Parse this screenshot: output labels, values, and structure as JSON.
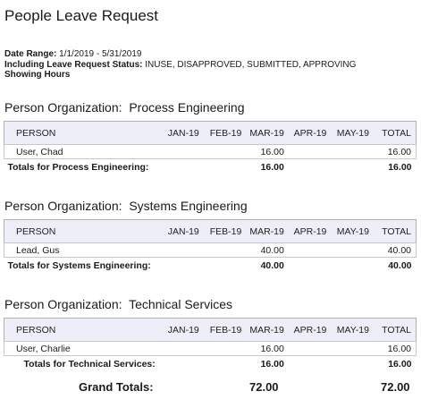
{
  "title": "People Leave Request",
  "meta": {
    "date_range_label": "Date Range:",
    "date_range_value": "1/1/2019 - 5/31/2019",
    "status_label": "Including Leave Request Status:",
    "status_value": "INUSE, DISAPPROVED, SUBMITTED, APPROVING",
    "showing": "Showing Hours"
  },
  "columns": [
    "PERSON",
    "JAN-19",
    "FEB-19",
    "MAR-19",
    "APR-19",
    "MAY-19",
    "TOTAL"
  ],
  "groups": [
    {
      "heading_label": "Person Organization:",
      "heading_value": "Process Engineering",
      "rows": [
        [
          "User, Chad",
          "",
          "",
          "16.00",
          "",
          "",
          "16.00"
        ]
      ],
      "totals": [
        "Totals for Process Engineering:",
        "",
        "",
        "16.00",
        "",
        "",
        "16.00"
      ]
    },
    {
      "heading_label": "Person Organization:",
      "heading_value": "Systems Engineering",
      "rows": [
        [
          "Lead, Gus",
          "",
          "",
          "40.00",
          "",
          "",
          "40.00"
        ]
      ],
      "totals": [
        "Totals for Systems Engineering:",
        "",
        "",
        "40.00",
        "",
        "",
        "40.00"
      ]
    },
    {
      "heading_label": "Person Organization:",
      "heading_value": "Technical Services",
      "rows": [
        [
          "User, Charlie",
          "",
          "",
          "16.00",
          "",
          "",
          "16.00"
        ]
      ],
      "totals": [
        "Totals for Technical Services:",
        "",
        "",
        "16.00",
        "",
        "",
        "16.00"
      ]
    }
  ],
  "grand_totals": {
    "label": "Grand Totals:",
    "mar": "72.00",
    "total": "72.00"
  }
}
